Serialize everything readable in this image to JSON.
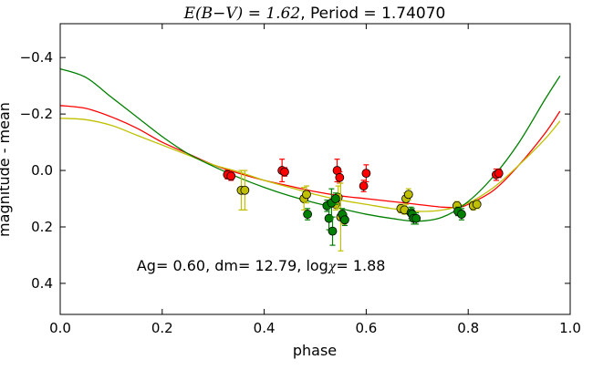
{
  "chart_data": {
    "type": "scatter",
    "title_math": "E(B−V) = 1.62",
    "title_rest": ", Period = 1.74070",
    "xlabel": "phase",
    "ylabel": "magnitude - mean",
    "xlim": [
      0.0,
      1.0
    ],
    "ylim": [
      0.51,
      -0.52
    ],
    "y_inverted": true,
    "grid": false,
    "x_ticks": [
      0.0,
      0.2,
      0.4,
      0.6,
      0.8,
      1.0
    ],
    "x_tick_labels": [
      "0.0",
      "0.2",
      "0.4",
      "0.6",
      "0.8",
      "1.0"
    ],
    "y_ticks": [
      -0.4,
      -0.2,
      0.0,
      0.2,
      0.4
    ],
    "y_tick_labels": [
      "−0.4",
      "−0.2",
      "0.0",
      "0.2",
      "0.4"
    ],
    "annotation": {
      "prefix": "Ag= 0.60, dm=  12.79, log",
      "chi": "χ",
      "suffix": "=  1.88",
      "x": 0.15,
      "y": 0.355
    },
    "series": [
      {
        "color": "#ff0000",
        "curve": [
          [
            0.0,
            -0.23
          ],
          [
            0.05,
            -0.22
          ],
          [
            0.1,
            -0.19
          ],
          [
            0.15,
            -0.15
          ],
          [
            0.2,
            -0.1
          ],
          [
            0.25,
            -0.06
          ],
          [
            0.3,
            -0.02
          ],
          [
            0.35,
            0.01
          ],
          [
            0.4,
            0.035
          ],
          [
            0.45,
            0.055
          ],
          [
            0.5,
            0.075
          ],
          [
            0.55,
            0.09
          ],
          [
            0.6,
            0.1
          ],
          [
            0.65,
            0.11
          ],
          [
            0.7,
            0.12
          ],
          [
            0.75,
            0.13
          ],
          [
            0.78,
            0.13
          ],
          [
            0.8,
            0.12
          ],
          [
            0.85,
            0.07
          ],
          [
            0.9,
            -0.02
          ],
          [
            0.95,
            -0.13
          ],
          [
            0.98,
            -0.21
          ]
        ],
        "points": [
          {
            "x": 0.328,
            "y": 0.015,
            "err": 0.015
          },
          {
            "x": 0.335,
            "y": 0.02,
            "err": 0.015
          },
          {
            "x": 0.435,
            "y": 0.0,
            "err": 0.04
          },
          {
            "x": 0.44,
            "y": 0.005,
            "err": 0.015
          },
          {
            "x": 0.543,
            "y": 0.0,
            "err": 0.04
          },
          {
            "x": 0.548,
            "y": 0.025,
            "err": 0.02
          },
          {
            "x": 0.595,
            "y": 0.055,
            "err": 0.02
          },
          {
            "x": 0.6,
            "y": 0.01,
            "err": 0.03
          },
          {
            "x": 0.855,
            "y": 0.015,
            "err": 0.02
          },
          {
            "x": 0.86,
            "y": 0.01,
            "err": 0.015
          }
        ]
      },
      {
        "color": "#c0c000",
        "curve": [
          [
            0.0,
            -0.185
          ],
          [
            0.05,
            -0.18
          ],
          [
            0.1,
            -0.16
          ],
          [
            0.15,
            -0.125
          ],
          [
            0.2,
            -0.09
          ],
          [
            0.25,
            -0.055
          ],
          [
            0.3,
            -0.02
          ],
          [
            0.35,
            0.005
          ],
          [
            0.4,
            0.035
          ],
          [
            0.45,
            0.06
          ],
          [
            0.5,
            0.085
          ],
          [
            0.55,
            0.105
          ],
          [
            0.6,
            0.12
          ],
          [
            0.65,
            0.135
          ],
          [
            0.7,
            0.145
          ],
          [
            0.75,
            0.14
          ],
          [
            0.8,
            0.115
          ],
          [
            0.85,
            0.06
          ],
          [
            0.9,
            -0.02
          ],
          [
            0.95,
            -0.11
          ],
          [
            0.98,
            -0.175
          ]
        ],
        "points": [
          {
            "x": 0.355,
            "y": 0.07,
            "err": 0.07
          },
          {
            "x": 0.362,
            "y": 0.07,
            "err": 0.07
          },
          {
            "x": 0.478,
            "y": 0.1,
            "err": 0.04
          },
          {
            "x": 0.483,
            "y": 0.085,
            "err": 0.03
          },
          {
            "x": 0.54,
            "y": 0.12,
            "err": 0.02
          },
          {
            "x": 0.545,
            "y": 0.095,
            "err": 0.04
          },
          {
            "x": 0.55,
            "y": 0.165,
            "err": 0.12
          },
          {
            "x": 0.556,
            "y": 0.17,
            "err": 0.02
          },
          {
            "x": 0.668,
            "y": 0.135,
            "err": 0.015
          },
          {
            "x": 0.675,
            "y": 0.14,
            "err": 0.015
          },
          {
            "x": 0.678,
            "y": 0.1,
            "err": 0.02
          },
          {
            "x": 0.683,
            "y": 0.085,
            "err": 0.02
          },
          {
            "x": 0.778,
            "y": 0.125,
            "err": 0.015
          },
          {
            "x": 0.81,
            "y": 0.125,
            "err": 0.015
          },
          {
            "x": 0.817,
            "y": 0.12,
            "err": 0.015
          }
        ]
      },
      {
        "color": "#008000",
        "curve": [
          [
            0.0,
            -0.36
          ],
          [
            0.05,
            -0.33
          ],
          [
            0.1,
            -0.26
          ],
          [
            0.15,
            -0.19
          ],
          [
            0.2,
            -0.12
          ],
          [
            0.25,
            -0.06
          ],
          [
            0.3,
            -0.015
          ],
          [
            0.35,
            0.025
          ],
          [
            0.4,
            0.06
          ],
          [
            0.45,
            0.09
          ],
          [
            0.5,
            0.115
          ],
          [
            0.55,
            0.135
          ],
          [
            0.6,
            0.155
          ],
          [
            0.65,
            0.17
          ],
          [
            0.7,
            0.18
          ],
          [
            0.75,
            0.165
          ],
          [
            0.8,
            0.11
          ],
          [
            0.85,
            0.02
          ],
          [
            0.9,
            -0.1
          ],
          [
            0.95,
            -0.25
          ],
          [
            0.98,
            -0.335
          ]
        ],
        "points": [
          {
            "x": 0.485,
            "y": 0.155,
            "err": 0.02
          },
          {
            "x": 0.523,
            "y": 0.125,
            "err": 0.02
          },
          {
            "x": 0.527,
            "y": 0.17,
            "err": 0.04
          },
          {
            "x": 0.532,
            "y": 0.115,
            "err": 0.05
          },
          {
            "x": 0.534,
            "y": 0.215,
            "err": 0.05
          },
          {
            "x": 0.54,
            "y": 0.1,
            "err": 0.02
          },
          {
            "x": 0.553,
            "y": 0.155,
            "err": 0.02
          },
          {
            "x": 0.558,
            "y": 0.175,
            "err": 0.02
          },
          {
            "x": 0.688,
            "y": 0.15,
            "err": 0.02
          },
          {
            "x": 0.69,
            "y": 0.155,
            "err": 0.02
          },
          {
            "x": 0.693,
            "y": 0.17,
            "err": 0.02
          },
          {
            "x": 0.698,
            "y": 0.17,
            "err": 0.02
          },
          {
            "x": 0.78,
            "y": 0.145,
            "err": 0.015
          },
          {
            "x": 0.787,
            "y": 0.155,
            "err": 0.02
          }
        ]
      }
    ]
  }
}
